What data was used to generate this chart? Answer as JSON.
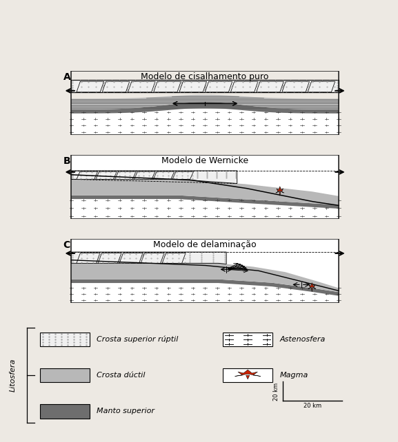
{
  "title_A": "Modelo de cisalhamento puro",
  "title_B": "Modelo de Wernicke",
  "title_C": "Modelo de delaminação",
  "label_A": "A",
  "label_B": "B",
  "label_C": "C",
  "bg_color": "#ede9e3",
  "crosta_ruptil_color": "#f0f0f0",
  "crosta_ductil_color": "#b8b8b8",
  "manto_color": "#6e6e6e",
  "magma_color": "#cc2200",
  "border_color": "#111111",
  "litosfera_label": "Litosfera",
  "scale_h": "20 km",
  "scale_v": "20 km",
  "font_size_title": 9,
  "font_size_label": 10,
  "font_size_legend": 8
}
